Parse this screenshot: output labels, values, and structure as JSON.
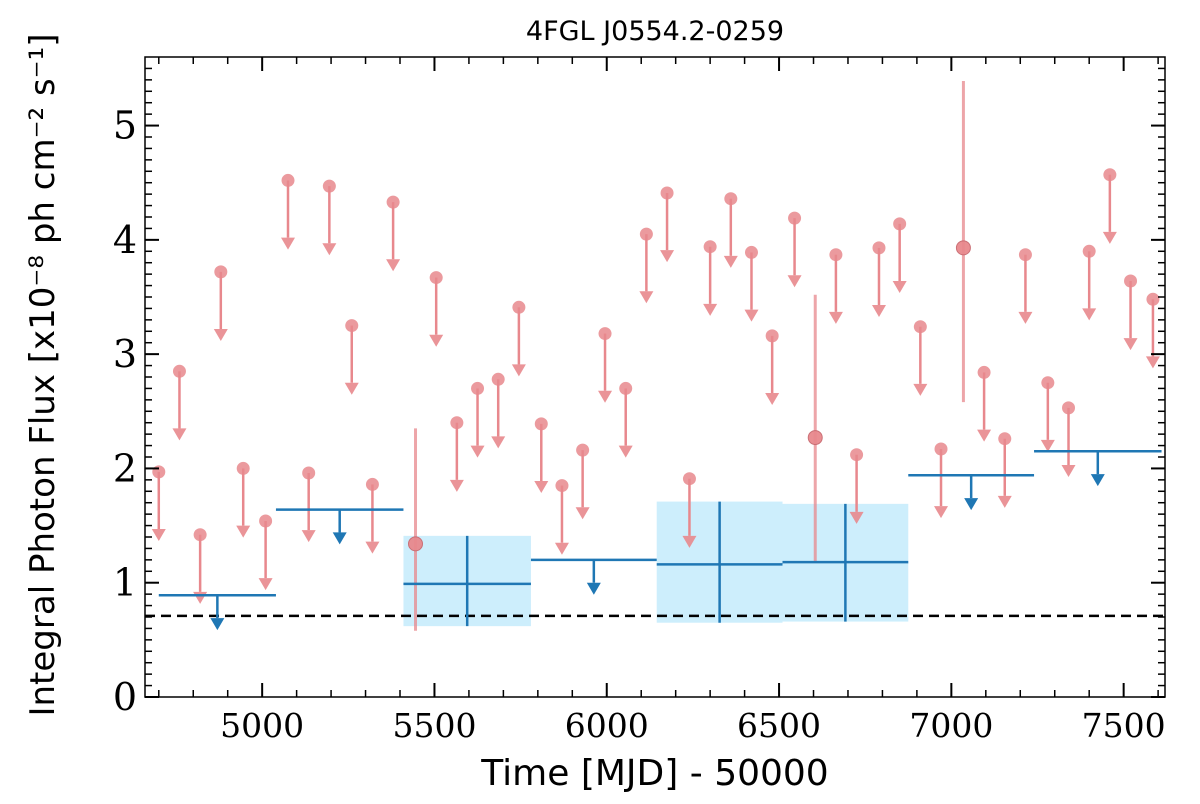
{
  "chart_data": {
    "type": "scatter",
    "title": "4FGL J0554.2-0259",
    "xlabel": "Time [MJD] - 50000",
    "ylabel": "Integral Photon Flux [x10⁻⁸ ph cm⁻² s⁻¹]",
    "xlim": [
      4660,
      7620
    ],
    "ylim": [
      0,
      5.6
    ],
    "xticks": [
      5000,
      5500,
      6000,
      6500,
      7000,
      7500
    ],
    "yticks": [
      0,
      1,
      2,
      3,
      4,
      5
    ],
    "grid": false,
    "reference_line": {
      "y": 0.71,
      "style": "dashed",
      "color": "#000000"
    },
    "colors": {
      "short": "#e8888d",
      "long": "#1f77b4",
      "band": "#cdeefc"
    },
    "series": [
      {
        "kind": "short-timescale",
        "points": [
          {
            "x": 4700,
            "y": 1.97,
            "ul": true
          },
          {
            "x": 4760,
            "y": 2.85,
            "ul": true
          },
          {
            "x": 4820,
            "y": 1.42,
            "ul": true
          },
          {
            "x": 4880,
            "y": 3.72,
            "ul": true
          },
          {
            "x": 4945,
            "y": 2.0,
            "ul": true
          },
          {
            "x": 5010,
            "y": 1.54,
            "ul": true
          },
          {
            "x": 5075,
            "y": 4.52,
            "ul": true
          },
          {
            "x": 5135,
            "y": 1.96,
            "ul": true
          },
          {
            "x": 5195,
            "y": 4.47,
            "ul": true
          },
          {
            "x": 5260,
            "y": 3.25,
            "ul": true
          },
          {
            "x": 5320,
            "y": 1.86,
            "ul": true
          },
          {
            "x": 5380,
            "y": 4.33,
            "ul": true
          },
          {
            "x": 5445,
            "y": 1.34,
            "ul": false,
            "ylow": 0.58,
            "yhigh": 2.35
          },
          {
            "x": 5505,
            "y": 3.67,
            "ul": true
          },
          {
            "x": 5565,
            "y": 2.4,
            "ul": true
          },
          {
            "x": 5625,
            "y": 2.7,
            "ul": true
          },
          {
            "x": 5685,
            "y": 2.78,
            "ul": true
          },
          {
            "x": 5745,
            "y": 3.41,
            "ul": true
          },
          {
            "x": 5810,
            "y": 2.39,
            "ul": true
          },
          {
            "x": 5870,
            "y": 1.85,
            "ul": true
          },
          {
            "x": 5930,
            "y": 2.16,
            "ul": true
          },
          {
            "x": 5995,
            "y": 3.18,
            "ul": true
          },
          {
            "x": 6055,
            "y": 2.7,
            "ul": true
          },
          {
            "x": 6115,
            "y": 4.05,
            "ul": true
          },
          {
            "x": 6175,
            "y": 4.41,
            "ul": true
          },
          {
            "x": 6240,
            "y": 1.91,
            "ul": true
          },
          {
            "x": 6300,
            "y": 3.94,
            "ul": true
          },
          {
            "x": 6360,
            "y": 4.36,
            "ul": true
          },
          {
            "x": 6420,
            "y": 3.89,
            "ul": true
          },
          {
            "x": 6480,
            "y": 3.16,
            "ul": true
          },
          {
            "x": 6545,
            "y": 4.19,
            "ul": true
          },
          {
            "x": 6605,
            "y": 2.27,
            "ul": false,
            "ylow": 1.18,
            "yhigh": 3.52
          },
          {
            "x": 6665,
            "y": 3.87,
            "ul": true
          },
          {
            "x": 6725,
            "y": 2.12,
            "ul": true
          },
          {
            "x": 6790,
            "y": 3.93,
            "ul": true
          },
          {
            "x": 6850,
            "y": 4.14,
            "ul": true
          },
          {
            "x": 6910,
            "y": 3.24,
            "ul": true
          },
          {
            "x": 6970,
            "y": 2.17,
            "ul": true
          },
          {
            "x": 7035,
            "y": 3.93,
            "ul": false,
            "ylow": 2.58,
            "yhigh": 5.39
          },
          {
            "x": 7095,
            "y": 2.84,
            "ul": true
          },
          {
            "x": 7155,
            "y": 2.26,
            "ul": true
          },
          {
            "x": 7215,
            "y": 3.87,
            "ul": true
          },
          {
            "x": 7280,
            "y": 2.75,
            "ul": true
          },
          {
            "x": 7340,
            "y": 2.53,
            "ul": true
          },
          {
            "x": 7400,
            "y": 3.9,
            "ul": true
          },
          {
            "x": 7460,
            "y": 4.57,
            "ul": true
          },
          {
            "x": 7520,
            "y": 3.64,
            "ul": true
          },
          {
            "x": 7585,
            "y": 3.48,
            "ul": true
          }
        ]
      },
      {
        "kind": "long-timescale",
        "bins": [
          {
            "x0": 4700,
            "x1": 5040,
            "y": 0.89,
            "ul": true
          },
          {
            "x0": 5040,
            "x1": 5410,
            "y": 1.64,
            "ul": true
          },
          {
            "x0": 5410,
            "x1": 5780,
            "y": 0.99,
            "ul": false,
            "ylow": 0.62,
            "yhigh": 1.41
          },
          {
            "x0": 5780,
            "x1": 6145,
            "y": 1.2,
            "ul": true
          },
          {
            "x0": 6145,
            "x1": 6510,
            "y": 1.16,
            "ul": false,
            "ylow": 0.65,
            "yhigh": 1.71
          },
          {
            "x0": 6510,
            "x1": 6875,
            "y": 1.18,
            "ul": false,
            "ylow": 0.66,
            "yhigh": 1.69
          },
          {
            "x0": 6875,
            "x1": 7240,
            "y": 1.94,
            "ul": true
          },
          {
            "x0": 7240,
            "x1": 7610,
            "y": 2.15,
            "ul": true
          }
        ]
      }
    ]
  }
}
